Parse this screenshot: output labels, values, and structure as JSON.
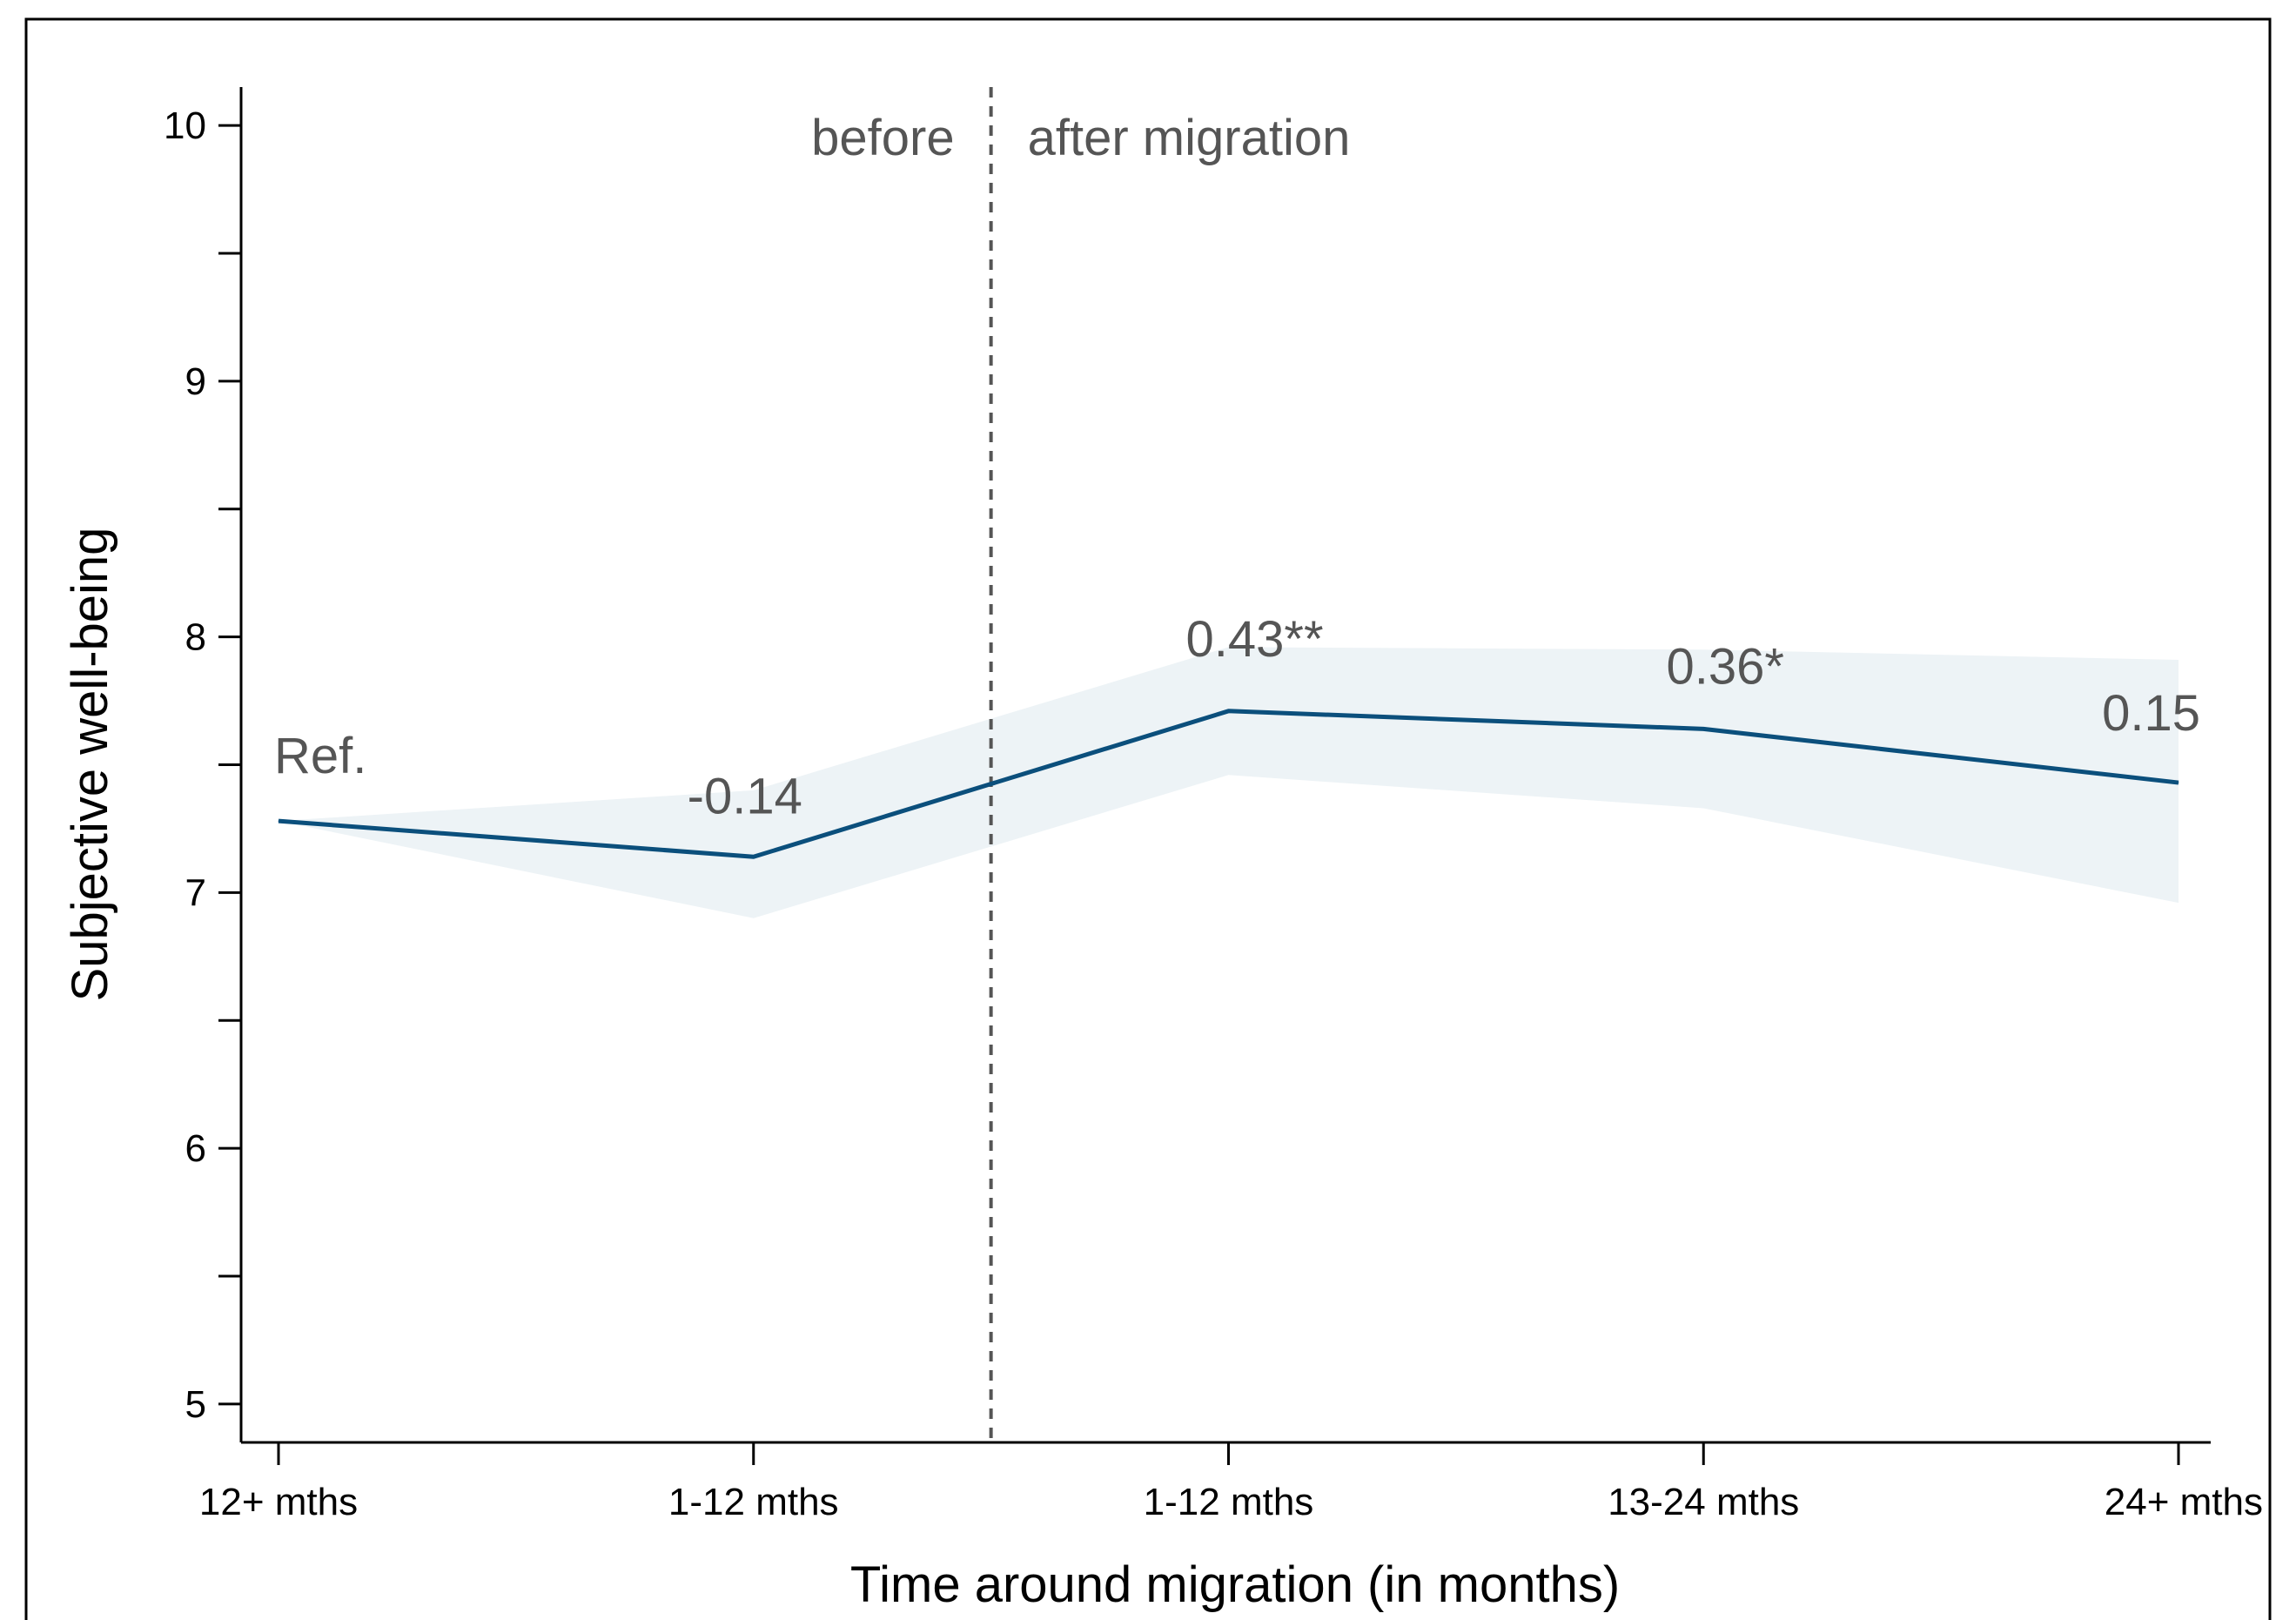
{
  "chart_data": {
    "type": "line",
    "xlabel": "Time around migration (in months)",
    "ylabel": "Subjective well-being",
    "categories": [
      "12+ mths",
      "1-12 mths",
      "1-12 mths",
      "13-24 mths",
      "24+ mths"
    ],
    "series": [
      {
        "values": [
          7.28,
          7.14,
          7.71,
          7.64,
          7.43
        ],
        "ci_lower": [
          7.28,
          6.9,
          7.46,
          7.33,
          6.96
        ],
        "ci_upper": [
          7.28,
          7.4,
          7.96,
          7.95,
          7.91
        ],
        "labels": [
          "Ref.",
          "-0.14",
          "0.43**",
          "0.36*",
          "0.15"
        ],
        "color": "#0b4f7c",
        "band_color": "#edf3f6"
      }
    ],
    "ylim": [
      4.85,
      10.15
    ],
    "yticks_major": [
      5,
      6,
      7,
      8,
      9,
      10
    ],
    "yticks_minor": [
      5.5,
      6.5,
      7.5,
      8.5,
      9.5
    ],
    "grid": false,
    "divider": {
      "position": 1.5,
      "left_label": "before",
      "right_label": "after migration",
      "color": "#555555"
    }
  }
}
